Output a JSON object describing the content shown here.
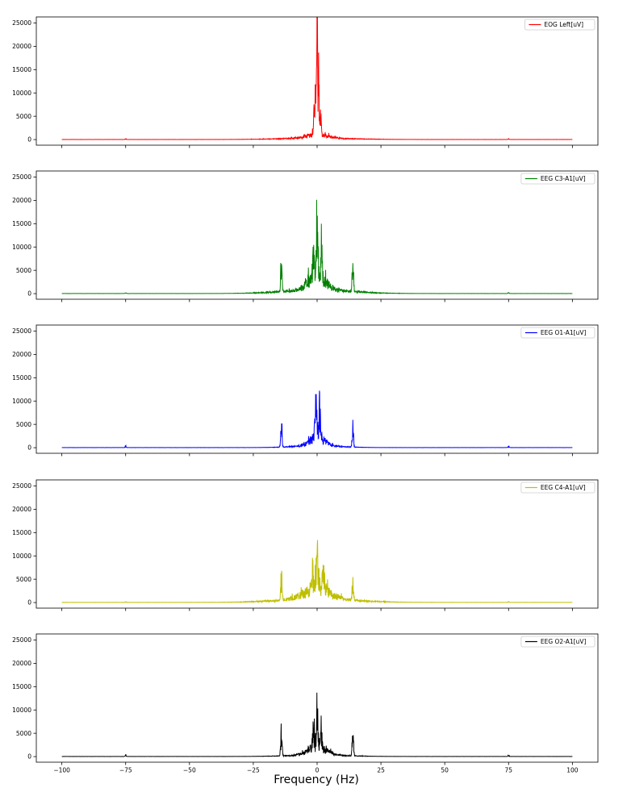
{
  "figure": {
    "xlabel": "Frequency (Hz)"
  },
  "chart_data": [
    {
      "type": "line",
      "series_name": "EOG Left[uV]",
      "color": "#ff0000",
      "xlim": [
        -110,
        110
      ],
      "ylim": [
        -1200,
        26300
      ],
      "xticks": [
        -100,
        -75,
        -50,
        -25,
        0,
        25,
        50,
        75,
        100
      ],
      "yticks": [
        0,
        5000,
        10000,
        15000,
        20000,
        25000
      ],
      "xtick_labels_shown": false,
      "legend": "top-right",
      "grid": false,
      "shape": {
        "baseline": 20,
        "broad": [
          800,
          5.5
        ],
        "broad2": [
          250,
          20
        ],
        "noise": 0.55,
        "peaks": [
          [
            0,
            25000,
            0.25
          ],
          [
            -0.6,
            14000,
            0.2
          ],
          [
            0.6,
            14000,
            0.2
          ],
          [
            -1.2,
            5000,
            0.35
          ],
          [
            1.3,
            4000,
            0.35
          ],
          [
            -75,
            120,
            0.3
          ],
          [
            75,
            120,
            0.3
          ]
        ]
      }
    },
    {
      "type": "line",
      "series_name": "EEG C3-A1[uV]",
      "color": "#008000",
      "xlim": [
        -110,
        110
      ],
      "ylim": [
        -1200,
        26300
      ],
      "xticks": [
        -100,
        -75,
        -50,
        -25,
        0,
        25,
        50,
        75,
        100
      ],
      "yticks": [
        0,
        5000,
        10000,
        15000,
        20000,
        25000
      ],
      "xtick_labels_shown": false,
      "legend": "top-right",
      "grid": false,
      "shape": {
        "baseline": 25,
        "broad": [
          2600,
          5.0
        ],
        "broad2": [
          650,
          19
        ],
        "noise": 0.6,
        "peaks": [
          [
            0,
            7600,
            0.5
          ],
          [
            -14,
            7100,
            0.35
          ],
          [
            14,
            7100,
            0.35
          ],
          [
            -1.5,
            4200,
            0.5
          ],
          [
            1.8,
            4500,
            0.5
          ],
          [
            -75,
            150,
            0.3
          ],
          [
            75,
            150,
            0.3
          ]
        ]
      }
    },
    {
      "type": "line",
      "series_name": "EEG O1-A1[uV]",
      "color": "#0000ff",
      "xlim": [
        -110,
        110
      ],
      "ylim": [
        -1200,
        26300
      ],
      "xticks": [
        -100,
        -75,
        -50,
        -25,
        0,
        25,
        50,
        75,
        100
      ],
      "yticks": [
        0,
        5000,
        10000,
        15000,
        20000,
        25000
      ],
      "xtick_labels_shown": false,
      "legend": "top-right",
      "grid": false,
      "shape": {
        "baseline": 25,
        "broad": [
          1900,
          4.0
        ],
        "broad2": [
          320,
          13
        ],
        "noise": 0.6,
        "peaks": [
          [
            -0.5,
            5600,
            0.5
          ],
          [
            1,
            5500,
            0.5
          ],
          [
            -14,
            3900,
            0.35
          ],
          [
            14,
            3900,
            0.35
          ],
          [
            -75,
            250,
            0.3
          ],
          [
            75,
            250,
            0.3
          ]
        ]
      }
    },
    {
      "type": "line",
      "series_name": "EEG C4-A1[uV]",
      "color": "#bfbf00",
      "xlim": [
        -110,
        110
      ],
      "ylim": [
        -1200,
        26300
      ],
      "xticks": [
        -100,
        -75,
        -50,
        -25,
        0,
        25,
        50,
        75,
        100
      ],
      "yticks": [
        0,
        5000,
        10000,
        15000,
        20000,
        25000
      ],
      "xtick_labels_shown": false,
      "legend": "top-right",
      "grid": false,
      "shape": {
        "baseline": 30,
        "broad": [
          2300,
          7.0
        ],
        "broad2": [
          650,
          21
        ],
        "noise": 0.6,
        "peaks": [
          [
            0,
            5500,
            0.6
          ],
          [
            -14,
            4500,
            0.35
          ],
          [
            14,
            4500,
            0.35
          ],
          [
            -2,
            4000,
            0.6
          ],
          [
            2.5,
            3600,
            0.6
          ],
          [
            -75,
            130,
            0.3
          ],
          [
            75,
            130,
            0.3
          ]
        ]
      }
    },
    {
      "type": "line",
      "series_name": "EEG O2-A1[uV]",
      "color": "#000000",
      "xlim": [
        -110,
        110
      ],
      "ylim": [
        -1200,
        26300
      ],
      "xticks": [
        -100,
        -75,
        -50,
        -25,
        0,
        25,
        50,
        75,
        100
      ],
      "yticks": [
        0,
        5000,
        10000,
        15000,
        20000,
        25000
      ],
      "xtick_labels": [
        "−100",
        "−75",
        "−50",
        "−25",
        "0",
        "25",
        "50",
        "75",
        "100"
      ],
      "xtick_labels_shown": true,
      "legend": "top-right",
      "grid": false,
      "shape": {
        "baseline": 25,
        "broad": [
          1700,
          5.0
        ],
        "broad2": [
          260,
          16
        ],
        "noise": 0.6,
        "peaks": [
          [
            0,
            7600,
            0.4
          ],
          [
            -14,
            5000,
            0.35
          ],
          [
            14,
            5000,
            0.35
          ],
          [
            -1.5,
            3700,
            0.45
          ],
          [
            1.5,
            3900,
            0.45
          ],
          [
            -75,
            250,
            0.3
          ],
          [
            75,
            250,
            0.3
          ]
        ]
      }
    }
  ]
}
